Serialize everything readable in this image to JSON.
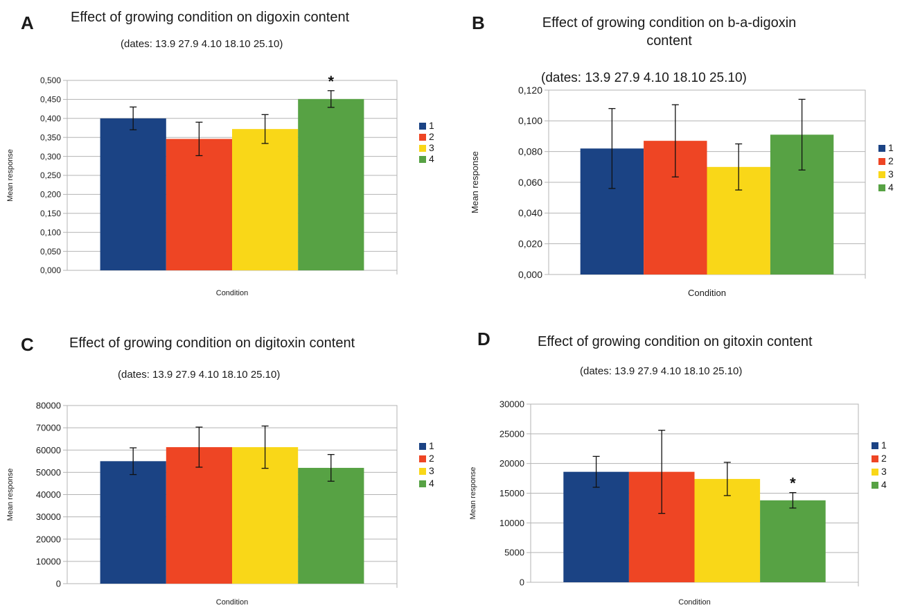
{
  "palette": {
    "s1": "#1b4384",
    "s2": "#ee4524",
    "s3": "#f9d718",
    "s4": "#57a244",
    "grid": "#b3b3b3",
    "axis": "#b3b3b3"
  },
  "panels": [
    {
      "letter": "A",
      "title": "Effect of growing condition on digoxin content",
      "subtitle": "(dates: 13.9 27.9 4.10 18.10 25.10)",
      "chart_data": {
        "type": "bar",
        "title": "Effect of growing condition on digoxin content",
        "subtitle": "(dates: 13.9 27.9 4.10 18.10 25.10)",
        "xlabel": "Condition",
        "ylabel": "Mean response",
        "ylim": [
          0,
          0.5
        ],
        "yticks": [
          "0,000",
          "0,050",
          "0,100",
          "0,150",
          "0,200",
          "0,250",
          "0,300",
          "0,350",
          "0,400",
          "0,450",
          "0,500"
        ],
        "grid": true,
        "legend": "right",
        "series": [
          {
            "name": "1",
            "color": "#1b4384",
            "value": 0.4,
            "error": 0.03,
            "annotation": ""
          },
          {
            "name": "2",
            "color": "#ee4524",
            "value": 0.346,
            "error": 0.044,
            "annotation": ""
          },
          {
            "name": "3",
            "color": "#f9d718",
            "value": 0.372,
            "error": 0.038,
            "annotation": ""
          },
          {
            "name": "4",
            "color": "#57a244",
            "value": 0.451,
            "error": 0.022,
            "annotation": "*"
          }
        ]
      }
    },
    {
      "letter": "B",
      "title": "Effect of growing  condition  on b-a-digoxin content",
      "subtitle": "(dates:  13.9  27.9  4.10  18.10  25.10)",
      "chart_data": {
        "type": "bar",
        "title": "Effect of growing  condition  on b-a-digoxin content",
        "subtitle": "(dates:  13.9  27.9  4.10  18.10  25.10)",
        "xlabel": "Condition",
        "ylabel": "Mean response",
        "ylim": [
          0,
          0.12
        ],
        "yticks": [
          "0,000",
          "0,020",
          "0,040",
          "0,060",
          "0,080",
          "0,100",
          "0,120"
        ],
        "grid": true,
        "legend": "right",
        "series": [
          {
            "name": "1",
            "color": "#1b4384",
            "value": 0.082,
            "error": 0.026,
            "annotation": ""
          },
          {
            "name": "2",
            "color": "#ee4524",
            "value": 0.087,
            "error": 0.0235,
            "annotation": ""
          },
          {
            "name": "3",
            "color": "#f9d718",
            "value": 0.07,
            "error": 0.015,
            "annotation": ""
          },
          {
            "name": "4",
            "color": "#57a244",
            "value": 0.091,
            "error": 0.023,
            "annotation": ""
          }
        ]
      }
    },
    {
      "letter": "C",
      "title": "Effect of growing condition on digitoxin content",
      "subtitle": "(dates: 13.9 27.9 4.10 18.10 25.10)",
      "chart_data": {
        "type": "bar",
        "title": "Effect of growing condition on digitoxin content",
        "subtitle": "(dates: 13.9 27.9 4.10 18.10 25.10)",
        "xlabel": "Condition",
        "ylabel": "Mean response",
        "ylim": [
          0,
          80000
        ],
        "yticks": [
          "0",
          "10000",
          "20000",
          "30000",
          "40000",
          "50000",
          "60000",
          "70000",
          "80000"
        ],
        "grid": true,
        "legend": "right",
        "series": [
          {
            "name": "1",
            "color": "#1b4384",
            "value": 55000,
            "error": 6000,
            "annotation": ""
          },
          {
            "name": "2",
            "color": "#ee4524",
            "value": 61300,
            "error": 9000,
            "annotation": ""
          },
          {
            "name": "3",
            "color": "#f9d718",
            "value": 61300,
            "error": 9500,
            "annotation": ""
          },
          {
            "name": "4",
            "color": "#57a244",
            "value": 52000,
            "error": 6000,
            "annotation": ""
          }
        ]
      }
    },
    {
      "letter": "D",
      "title": "Effect of growing condition on gitoxin content",
      "subtitle": "(dates: 13.9 27.9 4.10 18.10 25.10)",
      "chart_data": {
        "type": "bar",
        "title": "Effect of growing condition on gitoxin content",
        "subtitle": "(dates: 13.9 27.9 4.10 18.10 25.10)",
        "xlabel": "Condition",
        "ylabel": "Mean response",
        "ylim": [
          0,
          30000
        ],
        "yticks": [
          "0",
          "5000",
          "10000",
          "15000",
          "20000",
          "25000",
          "30000"
        ],
        "grid": true,
        "legend": "right",
        "series": [
          {
            "name": "1",
            "color": "#1b4384",
            "value": 18600,
            "error": 2600,
            "annotation": ""
          },
          {
            "name": "2",
            "color": "#ee4524",
            "value": 18600,
            "error": 7000,
            "annotation": ""
          },
          {
            "name": "3",
            "color": "#f9d718",
            "value": 17400,
            "error": 2800,
            "annotation": ""
          },
          {
            "name": "4",
            "color": "#57a244",
            "value": 13800,
            "error": 1300,
            "annotation": "*"
          }
        ]
      }
    }
  ]
}
